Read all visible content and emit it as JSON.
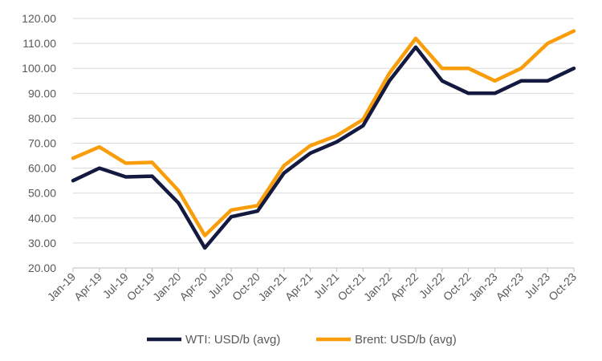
{
  "chart_data": {
    "type": "line",
    "title": "",
    "xlabel": "",
    "ylabel": "",
    "ylim": [
      20,
      120
    ],
    "yticks": [
      "20.00",
      "30.00",
      "40.00",
      "50.00",
      "60.00",
      "70.00",
      "80.00",
      "90.00",
      "100.00",
      "110.00",
      "120.00"
    ],
    "grid": "horizontal",
    "legend_position": "bottom",
    "categories": [
      "Jan-19",
      "Apr-19",
      "Jul-19",
      "Oct-19",
      "Jan-20",
      "Apr-20",
      "Jul-20",
      "Oct-20",
      "Jan-21",
      "Apr-21",
      "Jul-21",
      "Oct-21",
      "Jan-22",
      "Apr-22",
      "Jul-22",
      "Oct-22",
      "Jan-23",
      "Apr-23",
      "Jul-23",
      "Oct-23"
    ],
    "series": [
      {
        "name": "WTI: USD/b (avg)",
        "color": "#14193f",
        "values": [
          55.0,
          60.0,
          56.5,
          56.8,
          46.0,
          28.0,
          40.5,
          42.8,
          58.0,
          66.0,
          70.5,
          77.0,
          95.0,
          108.5,
          95.0,
          90.0,
          90.0,
          95.0,
          95.0,
          100.0
        ]
      },
      {
        "name": "Brent: USD/b (avg)",
        "color": "#f99d0b",
        "values": [
          64.0,
          68.5,
          62.0,
          62.3,
          51.0,
          33.0,
          43.2,
          45.0,
          61.0,
          69.0,
          73.0,
          79.5,
          98.0,
          112.0,
          100.0,
          100.0,
          95.0,
          100.0,
          110.0,
          115.0
        ]
      }
    ]
  }
}
